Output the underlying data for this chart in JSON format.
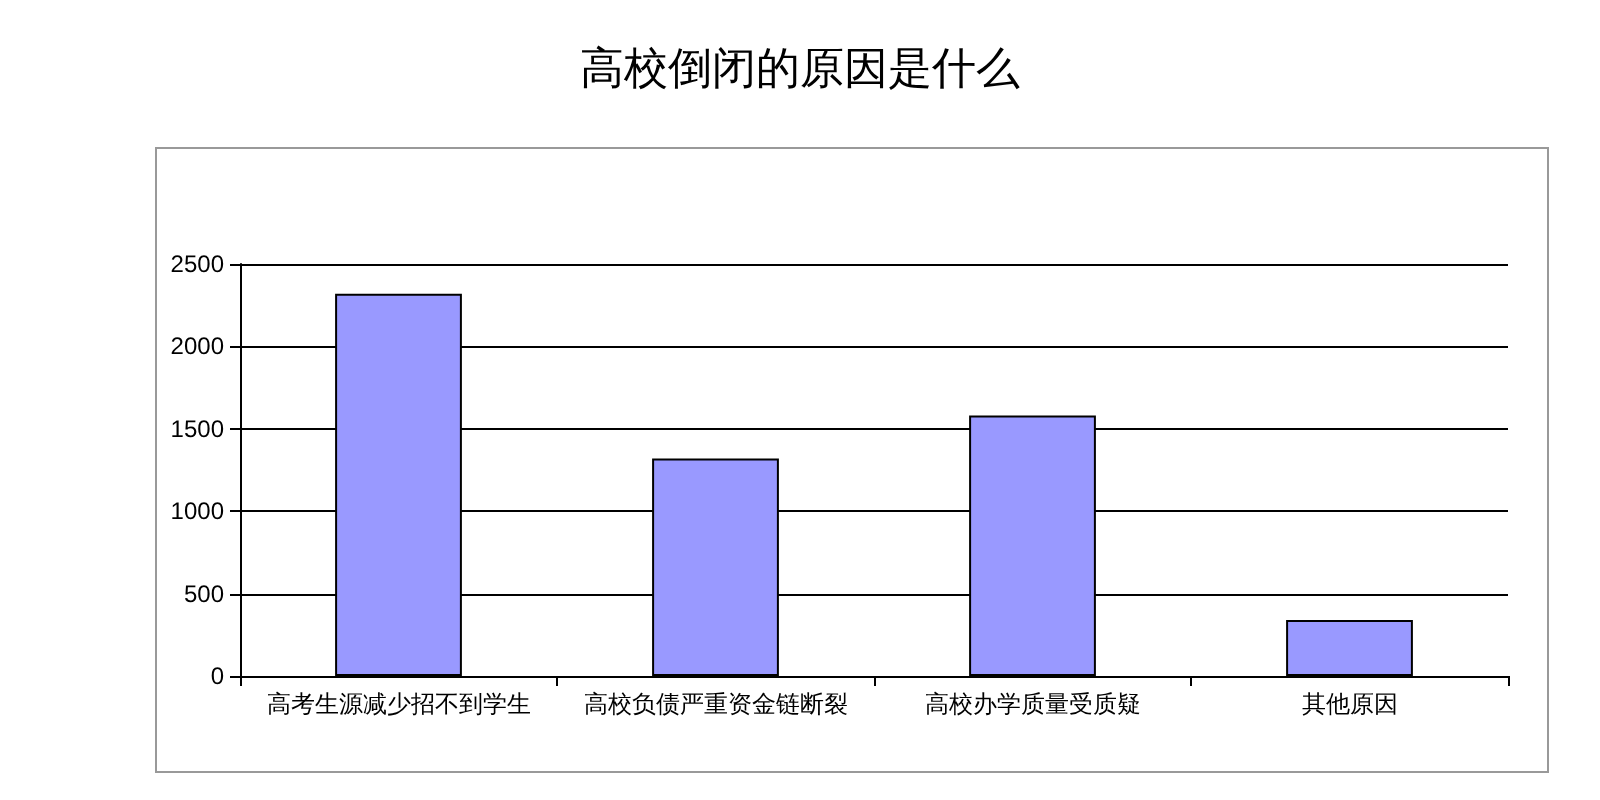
{
  "chart_data": {
    "type": "bar",
    "title": "高校倒闭的原因是什么",
    "categories": [
      "高考生源减少招不到学生",
      "高校负债严重资金链断裂",
      "高校办学质量受质疑",
      "其他原因"
    ],
    "values": [
      2320,
      1320,
      1580,
      340
    ],
    "color": "#9999ff",
    "ylim": [
      0,
      2500
    ],
    "yticks": [
      0,
      500,
      1000,
      1500,
      2000,
      2500
    ],
    "grid": true
  }
}
